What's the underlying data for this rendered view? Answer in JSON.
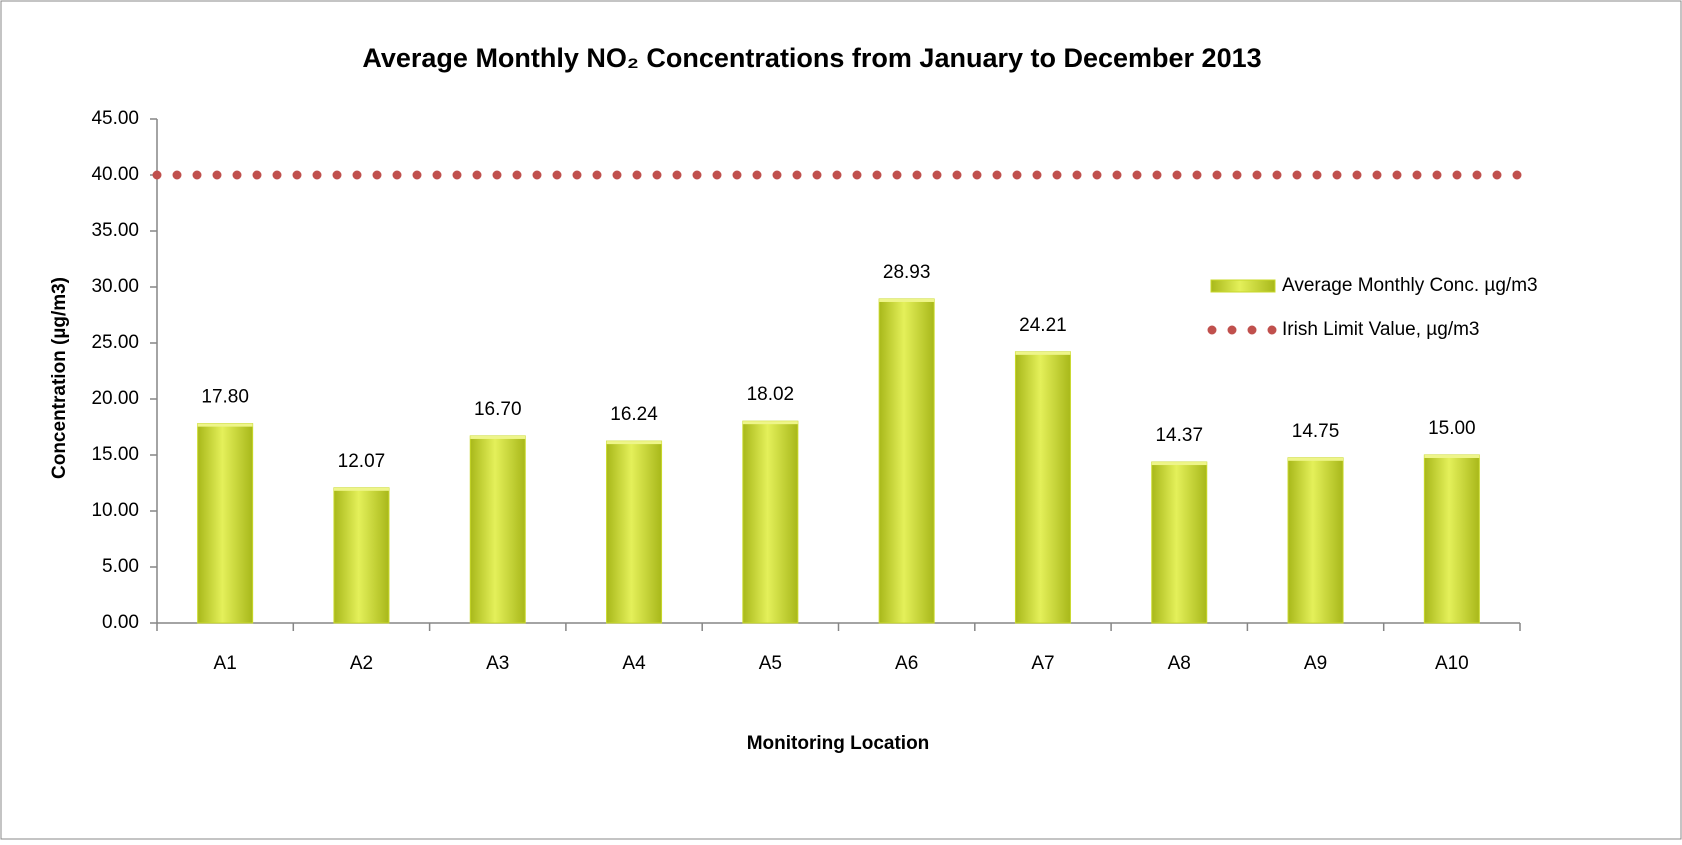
{
  "chart_data": {
    "type": "bar",
    "title": "Average Monthly NO₂ Concentrations from January to December 2013",
    "x_label": "Monitoring Location",
    "y_label": "Concentration (µg/m3)",
    "categories": [
      "A1",
      "A2",
      "A3",
      "A4",
      "A5",
      "A6",
      "A7",
      "A8",
      "A9",
      "A10"
    ],
    "series": [
      {
        "name": "Average Monthly Conc. µg/m3",
        "color": "#c8d82a",
        "values": [
          17.8,
          12.07,
          16.7,
          16.24,
          18.02,
          28.93,
          24.21,
          14.37,
          14.75,
          15.0
        ],
        "value_labels": [
          "17.80",
          "12.07",
          "16.70",
          "16.24",
          "18.02",
          "28.93",
          "24.21",
          "14.37",
          "14.75",
          "15.00"
        ]
      },
      {
        "name": "Irish Limit Value, µg/m3",
        "color": "#c0504d",
        "type": "line",
        "values": [
          40,
          40,
          40,
          40,
          40,
          40,
          40,
          40,
          40,
          40
        ]
      }
    ],
    "ylim": [
      0,
      45
    ],
    "yticks": [
      {
        "value": 0,
        "label": "0.00"
      },
      {
        "value": 5,
        "label": "5.00"
      },
      {
        "value": 10,
        "label": "10.00"
      },
      {
        "value": 15,
        "label": "15.00"
      },
      {
        "value": 20,
        "label": "20.00"
      },
      {
        "value": 25,
        "label": "25.00"
      },
      {
        "value": 30,
        "label": "30.00"
      },
      {
        "value": 35,
        "label": "35.00"
      },
      {
        "value": 40,
        "label": "40.00"
      },
      {
        "value": 45,
        "label": "45.00"
      }
    ],
    "grid": false,
    "legend": "right"
  }
}
